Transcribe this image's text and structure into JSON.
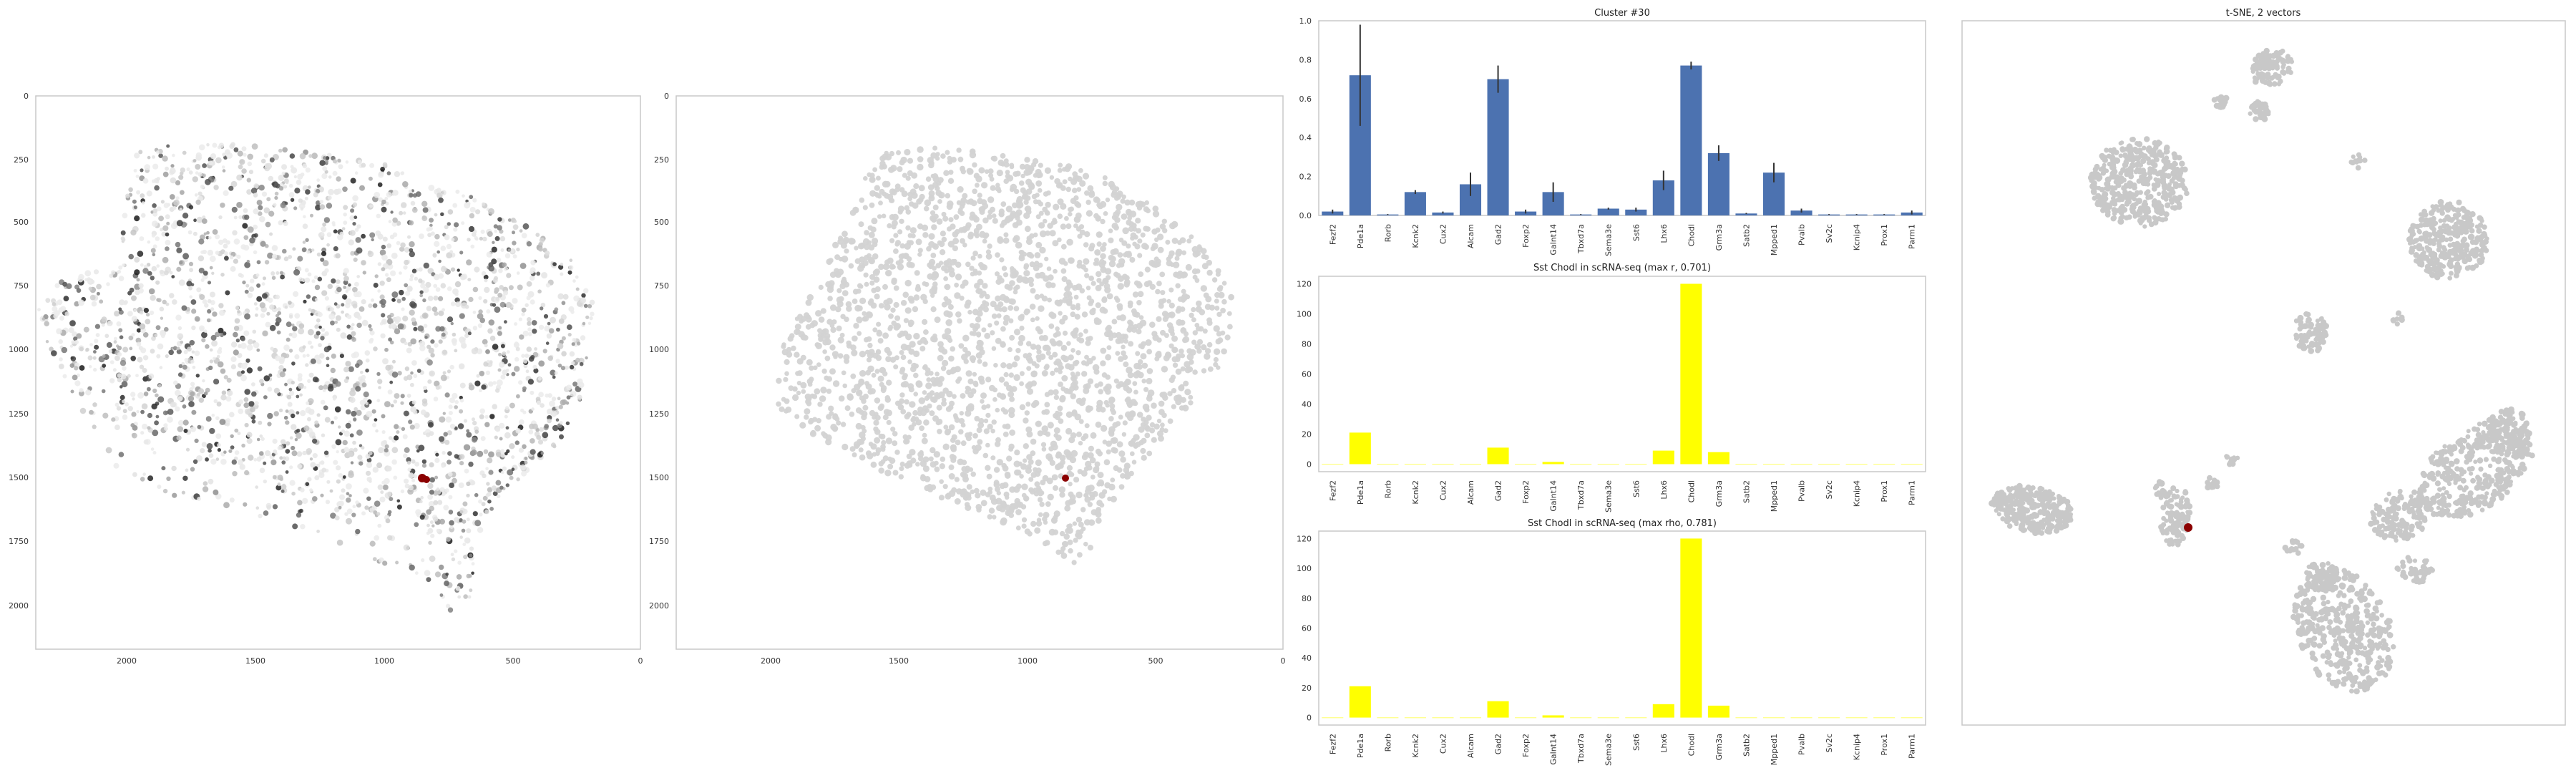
{
  "colors": {
    "spatial_point": "#000000",
    "spatial_grey": "#d3d3d3",
    "highlight": "#8b0000",
    "bar_blue": "#4c72b0",
    "bar_yellow": "#ffff00",
    "tsne_grey": "#c8c8c8",
    "axis_frame": "#c8c8c8"
  },
  "chart_data": [
    {
      "id": "spatial_intensity",
      "type": "scatter",
      "title": "",
      "x_ticks": [
        "2000",
        "1500",
        "1000",
        "500",
        "0"
      ],
      "y_ticks": [
        "0",
        "250",
        "500",
        "750",
        "1000",
        "1250",
        "1500",
        "1750",
        "2000"
      ],
      "xlim": [
        2350,
        0
      ],
      "ylim": [
        2200,
        0
      ],
      "x_inverted": true,
      "y_inverted": true,
      "grid": false,
      "highlight_point": {
        "x": 850,
        "y": 1500
      }
    },
    {
      "id": "spatial_cluster",
      "type": "scatter",
      "title": "",
      "x_ticks": [
        "2000",
        "1500",
        "1000",
        "500",
        "0"
      ],
      "y_ticks": [
        "0",
        "250",
        "500",
        "750",
        "1000",
        "1250",
        "1500",
        "1750",
        "2000"
      ],
      "xlim": [
        2350,
        0
      ],
      "ylim": [
        2200,
        0
      ],
      "x_inverted": true,
      "y_inverted": true,
      "grid": false,
      "highlight_point": {
        "x": 850,
        "y": 1500
      }
    },
    {
      "id": "cluster_bar",
      "type": "bar",
      "title": "Cluster #30",
      "categories": [
        "Fezf2",
        "Pde1a",
        "Rorb",
        "Kcnk2",
        "Cux2",
        "Alcam",
        "Gad2",
        "Foxp2",
        "Galnt14",
        "Tbxd7a",
        "Sema3e",
        "Sst6",
        "Lhx6",
        "Chodl",
        "Grm3a",
        "Satb2",
        "Mpped1",
        "Pvalb",
        "Sv2c",
        "Kcnip4",
        "Prox1",
        "Parm1"
      ],
      "values": [
        0.02,
        0.72,
        0.005,
        0.12,
        0.015,
        0.16,
        0.7,
        0.02,
        0.12,
        0.005,
        0.035,
        0.03,
        0.18,
        0.77,
        0.32,
        0.01,
        0.22,
        0.025,
        0.005,
        0.005,
        0.005,
        0.015
      ],
      "errors": [
        0.01,
        0.26,
        0.002,
        0.01,
        0.005,
        0.06,
        0.07,
        0.01,
        0.05,
        0.002,
        0.005,
        0.01,
        0.05,
        0.02,
        0.04,
        0.003,
        0.05,
        0.01,
        0.002,
        0.002,
        0.002,
        0.01
      ],
      "y_ticks": [
        "0.0",
        "0.2",
        "0.4",
        "0.6",
        "0.8",
        "1.0"
      ],
      "ylim": [
        0,
        1.0
      ],
      "grid": false
    },
    {
      "id": "scrna_max_r",
      "type": "bar",
      "title": "Sst Chodl in scRNA-seq (max r, 0.701)",
      "categories": [
        "Fezf2",
        "Pde1a",
        "Rorb",
        "Kcnk2",
        "Cux2",
        "Alcam",
        "Gad2",
        "Foxp2",
        "Galnt14",
        "Tbxd7a",
        "Sema3e",
        "Sst6",
        "Lhx6",
        "Chodl",
        "Grm3a",
        "Satb2",
        "Mpped1",
        "Pvalb",
        "Sv2c",
        "Kcnip4",
        "Prox1",
        "Parm1"
      ],
      "values": [
        0,
        21,
        0,
        0,
        0,
        0,
        11,
        0,
        1.5,
        0,
        0,
        0,
        9,
        120,
        8,
        0,
        0,
        0,
        0,
        0,
        0,
        0
      ],
      "y_ticks": [
        "0",
        "20",
        "40",
        "60",
        "80",
        "100",
        "120"
      ],
      "ylim": [
        -5,
        125
      ],
      "grid": false
    },
    {
      "id": "scrna_max_rho",
      "type": "bar",
      "title": "Sst Chodl in scRNA-seq (max rho, 0.781)",
      "categories": [
        "Fezf2",
        "Pde1a",
        "Rorb",
        "Kcnk2",
        "Cux2",
        "Alcam",
        "Gad2",
        "Foxp2",
        "Galnt14",
        "Tbxd7a",
        "Sema3e",
        "Sst6",
        "Lhx6",
        "Chodl",
        "Grm3a",
        "Satb2",
        "Mpped1",
        "Pvalb",
        "Sv2c",
        "Kcnip4",
        "Prox1",
        "Parm1"
      ],
      "values": [
        0,
        21,
        0,
        0,
        0,
        0,
        11,
        0,
        1.5,
        0,
        0,
        0,
        9,
        120,
        8,
        0,
        0,
        0,
        0,
        0,
        0,
        0
      ],
      "y_ticks": [
        "0",
        "20",
        "40",
        "60",
        "80",
        "100",
        "120"
      ],
      "ylim": [
        -5,
        125
      ],
      "grid": false
    },
    {
      "id": "tsne",
      "type": "scatter",
      "title": "t-SNE, 2 vectors",
      "grid": false
    }
  ]
}
